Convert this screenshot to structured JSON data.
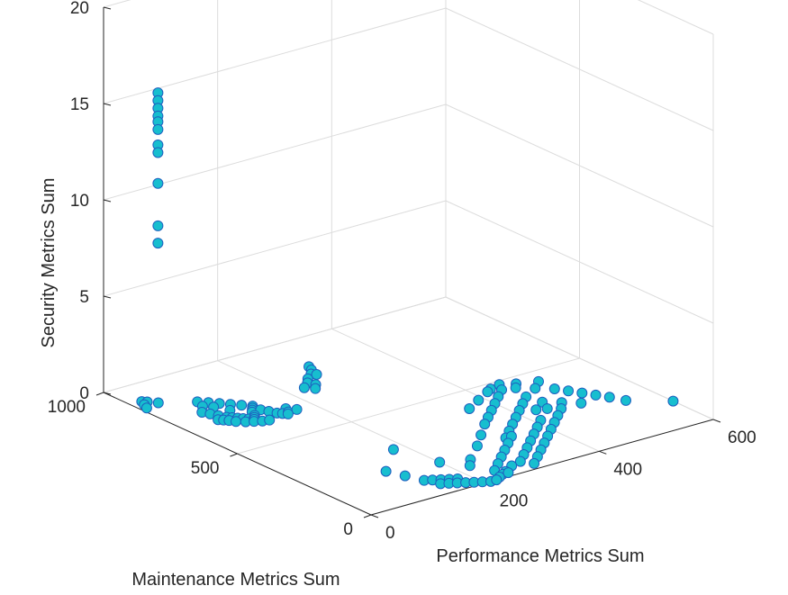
{
  "chart_data": {
    "type": "scatter3d",
    "title": "",
    "xlabel": "Performance Metrics Sum",
    "ylabel": "Maintenance Metrics Sum",
    "zlabel": "Security Metrics Sum",
    "xlim": [
      0,
      600
    ],
    "ylim": [
      0,
      1000
    ],
    "zlim": [
      0,
      20
    ],
    "xticks": [
      0,
      200,
      400,
      600
    ],
    "yticks": [
      0,
      500,
      1000
    ],
    "zticks": [
      0,
      5,
      10,
      15,
      20
    ],
    "xtick_labels": [
      "0",
      "200",
      "400",
      "600"
    ],
    "ytick_labels": [
      "0",
      "500",
      "1000"
    ],
    "ztick_labels": [
      "0",
      "5",
      "10",
      "15",
      "20"
    ],
    "grid": true,
    "marker_face_color": "#17becf",
    "marker_edge_color": "#1f5fbf",
    "points": [
      {
        "x": 25,
        "y": 850,
        "z": 16.3
      },
      {
        "x": 25,
        "y": 850,
        "z": 15.9
      },
      {
        "x": 25,
        "y": 850,
        "z": 15.5
      },
      {
        "x": 25,
        "y": 850,
        "z": 15.1
      },
      {
        "x": 25,
        "y": 850,
        "z": 14.8
      },
      {
        "x": 25,
        "y": 850,
        "z": 14.4
      },
      {
        "x": 25,
        "y": 850,
        "z": 13.6
      },
      {
        "x": 25,
        "y": 850,
        "z": 13.2
      },
      {
        "x": 25,
        "y": 850,
        "z": 11.6
      },
      {
        "x": 25,
        "y": 850,
        "z": 9.4
      },
      {
        "x": 25,
        "y": 850,
        "z": 8.5
      },
      {
        "x": 80,
        "y": 820,
        "z": 0
      },
      {
        "x": 90,
        "y": 800,
        "z": 0
      },
      {
        "x": 100,
        "y": 780,
        "z": 0
      },
      {
        "x": 85,
        "y": 770,
        "z": 0
      },
      {
        "x": 110,
        "y": 760,
        "z": 0
      },
      {
        "x": 75,
        "y": 790,
        "z": 0
      },
      {
        "x": 120,
        "y": 740,
        "z": 0
      },
      {
        "x": 95,
        "y": 730,
        "z": 0
      },
      {
        "x": 130,
        "y": 720,
        "z": 0
      },
      {
        "x": 60,
        "y": 760,
        "z": 0
      },
      {
        "x": 65,
        "y": 740,
        "z": 0
      },
      {
        "x": 70,
        "y": 720,
        "z": 0
      },
      {
        "x": 75,
        "y": 700,
        "z": 0
      },
      {
        "x": 80,
        "y": 690,
        "z": 0
      },
      {
        "x": 85,
        "y": 680,
        "z": 0
      },
      {
        "x": 90,
        "y": 670,
        "z": 0
      },
      {
        "x": 95,
        "y": 660,
        "z": 0
      },
      {
        "x": 100,
        "y": 650,
        "z": 0
      },
      {
        "x": 105,
        "y": 660,
        "z": 0
      },
      {
        "x": 110,
        "y": 670,
        "z": 0
      },
      {
        "x": 115,
        "y": 690,
        "z": 0
      },
      {
        "x": 120,
        "y": 700,
        "z": 0
      },
      {
        "x": 125,
        "y": 710,
        "z": 0
      },
      {
        "x": 130,
        "y": 690,
        "z": 0
      },
      {
        "x": 135,
        "y": 670,
        "z": 0
      },
      {
        "x": 140,
        "y": 650,
        "z": 0
      },
      {
        "x": 145,
        "y": 640,
        "z": 0
      },
      {
        "x": 150,
        "y": 630,
        "z": 0
      },
      {
        "x": 155,
        "y": 640,
        "z": 0
      },
      {
        "x": 70,
        "y": 680,
        "z": 0
      },
      {
        "x": 75,
        "y": 665,
        "z": 0
      },
      {
        "x": 85,
        "y": 650,
        "z": 0
      },
      {
        "x": 95,
        "y": 640,
        "z": 0
      },
      {
        "x": 105,
        "y": 630,
        "z": 0
      },
      {
        "x": 115,
        "y": 625,
        "z": 0
      },
      {
        "x": 60,
        "y": 700,
        "z": 0
      },
      {
        "x": 65,
        "y": 690,
        "z": 0
      },
      {
        "x": 160,
        "y": 660,
        "z": 0
      },
      {
        "x": 170,
        "y": 640,
        "z": 0
      },
      {
        "x": 20,
        "y": 900,
        "z": 0
      },
      {
        "x": 25,
        "y": 890,
        "z": 0
      },
      {
        "x": 15,
        "y": 880,
        "z": 0
      },
      {
        "x": 35,
        "y": 870,
        "z": 0
      },
      {
        "x": 10,
        "y": 860,
        "z": 0
      },
      {
        "x": 230,
        "y": 740,
        "z": 0
      },
      {
        "x": 240,
        "y": 720,
        "z": 0
      },
      {
        "x": 250,
        "y": 740,
        "z": 0
      },
      {
        "x": 245,
        "y": 760,
        "z": 0
      },
      {
        "x": 255,
        "y": 780,
        "z": 0
      },
      {
        "x": 270,
        "y": 800,
        "z": 0
      },
      {
        "x": 275,
        "y": 790,
        "z": 0
      },
      {
        "x": 280,
        "y": 820,
        "z": 0
      },
      {
        "x": 285,
        "y": 840,
        "z": 0
      },
      {
        "x": 140,
        "y": 100,
        "z": 0
      },
      {
        "x": 150,
        "y": 90,
        "z": 0
      },
      {
        "x": 160,
        "y": 80,
        "z": 0
      },
      {
        "x": 170,
        "y": 70,
        "z": 0
      },
      {
        "x": 180,
        "y": 60,
        "z": 0
      },
      {
        "x": 150,
        "y": 60,
        "z": 0
      },
      {
        "x": 160,
        "y": 50,
        "z": 0
      },
      {
        "x": 170,
        "y": 40,
        "z": 0
      },
      {
        "x": 180,
        "y": 30,
        "z": 0
      },
      {
        "x": 190,
        "y": 20,
        "z": 0
      },
      {
        "x": 200,
        "y": 10,
        "z": 0
      },
      {
        "x": 210,
        "y": 0,
        "z": 0
      },
      {
        "x": 220,
        "y": 0,
        "z": 0
      },
      {
        "x": 230,
        "y": 10,
        "z": 0
      },
      {
        "x": 240,
        "y": 20,
        "z": 0
      },
      {
        "x": 250,
        "y": 30,
        "z": 0
      },
      {
        "x": 130,
        "y": 150,
        "z": 0
      },
      {
        "x": 120,
        "y": 200,
        "z": 0
      },
      {
        "x": 200,
        "y": 170,
        "z": 0
      },
      {
        "x": 180,
        "y": 300,
        "z": 0
      },
      {
        "x": 240,
        "y": 140,
        "z": 0
      },
      {
        "x": 225,
        "y": 110,
        "z": 0
      },
      {
        "x": 240,
        "y": 50,
        "z": 0
      },
      {
        "x": 260,
        "y": 80,
        "z": 0
      },
      {
        "x": 280,
        "y": 110,
        "z": 0
      },
      {
        "x": 300,
        "y": 140,
        "z": 0
      },
      {
        "x": 320,
        "y": 170,
        "z": 0
      },
      {
        "x": 340,
        "y": 200,
        "z": 0
      },
      {
        "x": 250,
        "y": 20,
        "z": 0
      },
      {
        "x": 270,
        "y": 50,
        "z": 0
      },
      {
        "x": 290,
        "y": 60,
        "z": 0
      },
      {
        "x": 310,
        "y": 90,
        "z": 0
      },
      {
        "x": 330,
        "y": 120,
        "z": 0
      },
      {
        "x": 350,
        "y": 150,
        "z": 0
      },
      {
        "x": 370,
        "y": 180,
        "z": 0
      },
      {
        "x": 390,
        "y": 210,
        "z": 0
      },
      {
        "x": 410,
        "y": 240,
        "z": 0
      },
      {
        "x": 300,
        "y": 30,
        "z": 0
      },
      {
        "x": 320,
        "y": 60,
        "z": 0
      },
      {
        "x": 340,
        "y": 90,
        "z": 0
      },
      {
        "x": 360,
        "y": 120,
        "z": 0
      },
      {
        "x": 380,
        "y": 150,
        "z": 0
      },
      {
        "x": 400,
        "y": 180,
        "z": 0
      },
      {
        "x": 420,
        "y": 210,
        "z": 0
      },
      {
        "x": 440,
        "y": 240,
        "z": 0
      },
      {
        "x": 460,
        "y": 270,
        "z": 0
      },
      {
        "x": 330,
        "y": 200,
        "z": 0
      },
      {
        "x": 350,
        "y": 230,
        "z": 0
      },
      {
        "x": 370,
        "y": 260,
        "z": 0
      },
      {
        "x": 390,
        "y": 290,
        "z": 0
      },
      {
        "x": 410,
        "y": 320,
        "z": 0
      },
      {
        "x": 430,
        "y": 350,
        "z": 0
      },
      {
        "x": 450,
        "y": 380,
        "z": 0
      },
      {
        "x": 340,
        "y": 300,
        "z": 0
      },
      {
        "x": 360,
        "y": 330,
        "z": 0
      },
      {
        "x": 380,
        "y": 360,
        "z": 0
      },
      {
        "x": 400,
        "y": 390,
        "z": 0
      },
      {
        "x": 420,
        "y": 420,
        "z": 0
      },
      {
        "x": 440,
        "y": 450,
        "z": 0
      },
      {
        "x": 460,
        "y": 440,
        "z": 0
      },
      {
        "x": 480,
        "y": 410,
        "z": 0
      },
      {
        "x": 500,
        "y": 380,
        "z": 0
      },
      {
        "x": 500,
        "y": 440,
        "z": 0
      },
      {
        "x": 470,
        "y": 460,
        "z": 0
      },
      {
        "x": 450,
        "y": 480,
        "z": 0
      },
      {
        "x": 430,
        "y": 470,
        "z": 0
      },
      {
        "x": 510,
        "y": 350,
        "z": 0
      },
      {
        "x": 520,
        "y": 320,
        "z": 0
      },
      {
        "x": 530,
        "y": 290,
        "z": 0
      },
      {
        "x": 540,
        "y": 260,
        "z": 0
      },
      {
        "x": 600,
        "y": 150,
        "z": 0
      },
      {
        "x": 550,
        "y": 220,
        "z": 0
      },
      {
        "x": 360,
        "y": 400,
        "z": 0
      },
      {
        "x": 390,
        "y": 430,
        "z": 0
      },
      {
        "x": 420,
        "y": 460,
        "z": 0
      },
      {
        "x": 455,
        "y": 330,
        "z": 0
      },
      {
        "x": 475,
        "y": 300,
        "z": 0
      },
      {
        "x": 495,
        "y": 270,
        "z": 0
      },
      {
        "x": 310,
        "y": 250,
        "z": 0
      },
      {
        "x": 280,
        "y": 200,
        "z": 0
      },
      {
        "x": 430,
        "y": 300,
        "z": 0
      },
      {
        "x": 445,
        "y": 290,
        "z": 0
      }
    ]
  }
}
